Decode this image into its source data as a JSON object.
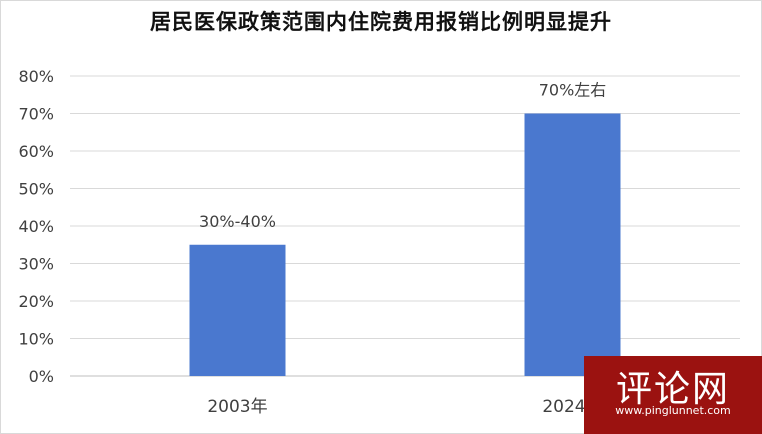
{
  "page": {
    "title": "居民医保政策范围内住院费用报销比例明显提升"
  },
  "watermark": {
    "text": "评论网",
    "url": "www.pinglunnet.com"
  },
  "chart_data": {
    "type": "bar",
    "title": "居民医保政策范围内住院费用报销比例明显提升",
    "categories": [
      "2003年",
      "2024年"
    ],
    "values": [
      35,
      70
    ],
    "data_labels": [
      "30%-40%",
      "70%左右"
    ],
    "y_ticks": [
      "0%",
      "10%",
      "20%",
      "30%",
      "40%",
      "50%",
      "60%",
      "70%",
      "80%"
    ],
    "ylim": [
      0,
      80
    ],
    "grid": true,
    "bar_color": "#4a78cf"
  }
}
